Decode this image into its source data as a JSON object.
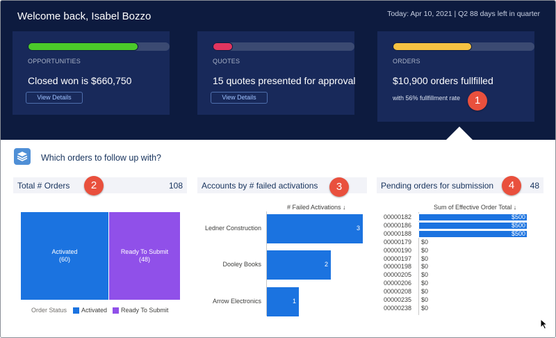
{
  "header": {
    "welcome": "Welcome back, Isabel Bozzo",
    "today": "Today: Apr 10, 2021 | Q2 88 days left in quarter"
  },
  "cards": [
    {
      "kicker": "OPPORTUNITIES",
      "headline": "Closed won is $660,750",
      "button": "View Details",
      "progress": 0.78,
      "color": "#4bca2a"
    },
    {
      "kicker": "QUOTES",
      "headline": "15 quotes presented for approval",
      "button": "View Details",
      "progress": 0.14,
      "color": "#e2355f"
    },
    {
      "kicker": "ORDERS",
      "headline": "$10,900 orders fullfilled",
      "subtext": "with 56% fullfillment rate",
      "progress": 0.56,
      "color": "#f5c242"
    }
  ],
  "badges": [
    "1",
    "2",
    "3",
    "4"
  ],
  "section": {
    "question": "Which orders to follow up with?"
  },
  "panels": {
    "total_orders": {
      "title": "Total # Orders",
      "count": "108"
    },
    "failed_activations": {
      "title": "Accounts by # failed activations"
    },
    "pending": {
      "title": "Pending orders for submission",
      "count": "48"
    }
  },
  "chart_data": [
    {
      "type": "treemap",
      "title": "Total # Orders",
      "legend_title": "Order Status",
      "categories": [
        "Activated",
        "Ready To Submit"
      ],
      "values": [
        60,
        48
      ],
      "tile_labels": [
        "Activated",
        "Ready To Submit"
      ],
      "tile_values": [
        "(60)",
        "(48)"
      ],
      "colors": [
        "#1b73e0",
        "#9050e9"
      ]
    },
    {
      "type": "bar",
      "orientation": "horizontal",
      "xlabel": "# Failed Activations ↓",
      "categories": [
        "Ledner Construction",
        "Dooley Books",
        "Arrow Electronics"
      ],
      "values": [
        3,
        2,
        1
      ],
      "color": "#1b73e0"
    },
    {
      "type": "bar",
      "orientation": "horizontal",
      "xlabel": "Sum of Effective Order Total ↓",
      "categories": [
        "00000182",
        "00000186",
        "00000188",
        "00000179",
        "00000190",
        "00000197",
        "00000198",
        "00000205",
        "00000206",
        "00000208",
        "00000235",
        "00000238"
      ],
      "values": [
        500,
        500,
        500,
        0,
        0,
        0,
        0,
        0,
        0,
        0,
        0,
        0
      ],
      "value_labels": [
        "$500",
        "$500",
        "$500",
        "$0",
        "$0",
        "$0",
        "$0",
        "$0",
        "$0",
        "$0",
        "$0",
        "$0"
      ],
      "color": "#1b73e0"
    }
  ]
}
